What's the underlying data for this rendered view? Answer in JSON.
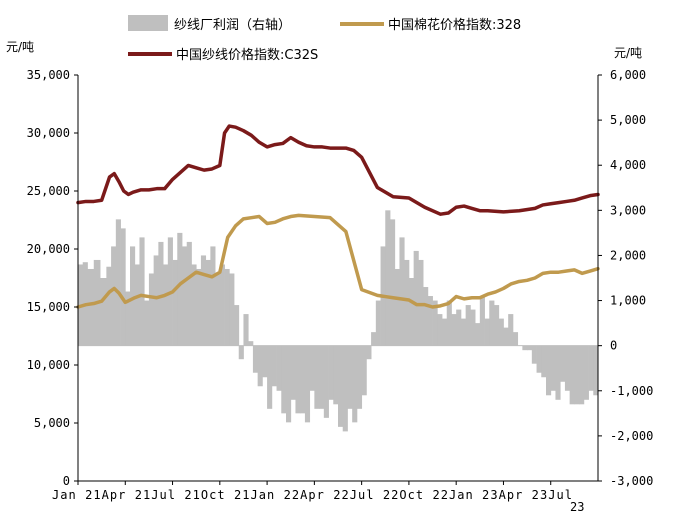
{
  "chart_data": {
    "type": "line",
    "title": "",
    "y_left_unit": "元/吨",
    "y_right_unit": "元/吨",
    "ylim_left": [
      0,
      35000
    ],
    "ylim_right": [
      -3000,
      6000
    ],
    "y_left_ticks": [
      {
        "value": 0,
        "label": "0"
      },
      {
        "value": 5000,
        "label": "5,000"
      },
      {
        "value": 10000,
        "label": "10,000"
      },
      {
        "value": 15000,
        "label": "15,000"
      },
      {
        "value": 20000,
        "label": "20,000"
      },
      {
        "value": 25000,
        "label": "25,000"
      },
      {
        "value": 30000,
        "label": "30,000"
      },
      {
        "value": 35000,
        "label": "35,000"
      }
    ],
    "y_right_ticks": [
      {
        "value": 6000,
        "label": "6,000"
      },
      {
        "value": 5000,
        "label": "5,000"
      },
      {
        "value": 4000,
        "label": "4,000"
      },
      {
        "value": 3000,
        "label": "3,000"
      },
      {
        "value": 2000,
        "label": "2,000"
      },
      {
        "value": 1000,
        "label": "1,000"
      },
      {
        "value": 0,
        "label": "0"
      },
      {
        "value": -1000,
        "label": "-1,000"
      },
      {
        "value": -2000,
        "label": "-2,000"
      },
      {
        "value": -3000,
        "label": "-3,000"
      }
    ],
    "x_tick_labels": [
      "Jan 21",
      "Apr 21",
      "Jul 21",
      "Oct 21",
      "Jan 22",
      "Apr 22",
      "Jul 22",
      "Oct 22",
      "Jan 23",
      "Apr 23",
      "Jul 23"
    ],
    "x_tick_lines": [
      {
        "seg1": "Jan",
        "seg2": " 21",
        "seg3": "Apr",
        "seg4": " 21",
        "seg5": "Jul",
        "seg6": " 21",
        "seg7": "Oct",
        "seg8": " 21",
        "seg9": "Jan",
        "seg10": " 22",
        "seg11": "Apr",
        "seg12": " 22",
        "seg13": "Jul",
        "seg14": " 22",
        "seg15": "Oct",
        "seg16": " 22",
        "seg17": "Jan",
        "seg18": " 23",
        "seg19": "Apr",
        "seg20": " 23",
        "seg21": "Jul",
        "seg22": " 23"
      }
    ],
    "x_label_row1": "Jan  21Apr  21Jul  21Oct  21Jan  22Apr  22Jul  22Oct  22Jan  23Apr  23Jul",
    "x_label_row2": "23",
    "x_range": [
      0,
      33
    ],
    "series": [
      {
        "name": "纱线厂利润（右轴）",
        "type": "area",
        "axis": "right",
        "color": "#bfbfbf",
        "x": [
          0,
          0.3,
          0.6,
          1.0,
          1.4,
          1.8,
          2.1,
          2.4,
          2.7,
          3.0,
          3.3,
          3.6,
          3.9,
          4.2,
          4.5,
          4.8,
          5.1,
          5.4,
          5.7,
          6.0,
          6.3,
          6.6,
          6.9,
          7.2,
          7.5,
          7.8,
          8.1,
          8.4,
          8.7,
          9.0,
          9.3,
          9.6,
          9.9,
          10.2,
          10.5,
          10.8,
          11.1,
          11.4,
          11.7,
          12.0,
          12.3,
          12.6,
          12.9,
          13.2,
          13.5,
          13.8,
          14.1,
          14.4,
          14.7,
          15.0,
          15.3,
          15.6,
          15.9,
          16.2,
          16.5,
          16.8,
          17.1,
          17.4,
          17.7,
          18.0,
          18.3,
          18.6,
          18.9,
          19.2,
          19.5,
          19.8,
          20.1,
          20.4,
          20.7,
          21.0,
          21.3,
          21.6,
          21.9,
          22.2,
          22.5,
          22.8,
          23.1,
          23.4,
          23.7,
          24.0,
          24.3,
          24.6,
          24.9,
          25.2,
          25.5,
          25.8,
          26.1,
          26.4,
          26.7,
          27.0,
          27.3,
          27.6,
          27.9,
          28.2,
          28.5,
          28.8,
          29.1,
          29.4,
          29.7,
          30.0,
          30.3,
          30.6,
          30.9,
          31.2,
          31.5,
          31.8,
          32.1,
          32.4,
          32.7,
          33.0
        ],
        "values": [
          1800,
          1850,
          1700,
          1900,
          1500,
          1750,
          2200,
          2800,
          2600,
          1200,
          2200,
          1800,
          2400,
          1000,
          1600,
          2000,
          2300,
          1800,
          2400,
          1900,
          2500,
          2200,
          2300,
          1800,
          1700,
          2000,
          1900,
          2200,
          1600,
          1800,
          1700,
          1600,
          900,
          -300,
          700,
          100,
          -600,
          -900,
          -700,
          -1400,
          -900,
          -1000,
          -1500,
          -1700,
          -1200,
          -1500,
          -1500,
          -1700,
          -1000,
          -1400,
          -1400,
          -1600,
          -1200,
          -1300,
          -1800,
          -1900,
          -1400,
          -1700,
          -1400,
          -1100,
          -300,
          300,
          1000,
          2200,
          3000,
          2800,
          1700,
          2400,
          1900,
          1500,
          2100,
          1900,
          1300,
          1100,
          1000,
          700,
          600,
          1000,
          700,
          800,
          600,
          900,
          800,
          500,
          1100,
          600,
          1000,
          900,
          600,
          400,
          700,
          300,
          0,
          -100,
          -100,
          -400,
          -600,
          -700,
          -1100,
          -1000,
          -1200,
          -800,
          -1000,
          -1300,
          -1300,
          -1300,
          -1200,
          -1000,
          -1100,
          -1200
        ],
        "note": "values in 元/吨 read from right axis"
      },
      {
        "name": "中国棉花价格指数:328",
        "type": "line",
        "axis": "left",
        "color": "#c09a4e",
        "x": [
          0,
          0.5,
          1.0,
          1.5,
          2.0,
          2.3,
          2.6,
          3.0,
          3.3,
          3.6,
          4.0,
          4.5,
          5.0,
          5.5,
          6.0,
          6.5,
          7.0,
          7.5,
          8.0,
          8.5,
          9.0,
          9.5,
          10.0,
          10.5,
          11.0,
          11.5,
          12.0,
          12.5,
          13.0,
          13.5,
          14.0,
          15.0,
          16.0,
          17.0,
          18.0,
          19.0,
          19.5,
          20.0,
          20.5,
          21.0,
          21.5,
          22.0,
          22.5,
          23.0,
          23.5,
          24.0,
          24.5,
          25.0,
          25.5,
          26.0,
          26.5,
          27.0,
          27.5,
          28.0,
          28.5,
          29.0,
          29.5,
          30.0,
          30.5,
          31.0,
          31.5,
          32.0,
          32.5,
          33.0
        ],
        "values": [
          15000,
          15200,
          15300,
          15500,
          16300,
          16600,
          16200,
          15400,
          15600,
          15800,
          16000,
          15900,
          15800,
          16000,
          16300,
          17000,
          17500,
          18000,
          17800,
          17600,
          18000,
          21000,
          22000,
          22600,
          22700,
          22800,
          22200,
          22300,
          22600,
          22800,
          22900,
          22800,
          22700,
          21500,
          16500,
          16000,
          15900,
          15800,
          15700,
          15600,
          15200,
          15200,
          15000,
          15100,
          15300,
          15900,
          15700,
          15800,
          15800,
          16100,
          16300,
          16600,
          17000,
          17200,
          17300,
          17500,
          17900,
          18000,
          18000,
          18100,
          18200,
          17900,
          18100,
          18300
        ]
      },
      {
        "name": "中国纱线价格指数:C32S",
        "type": "line",
        "axis": "left",
        "color": "#7b1a1a",
        "x": [
          0,
          0.5,
          1.0,
          1.5,
          2.0,
          2.3,
          2.6,
          2.9,
          3.2,
          3.5,
          4.0,
          4.5,
          5.0,
          5.5,
          6.0,
          6.5,
          7.0,
          7.5,
          8.0,
          8.5,
          9.0,
          9.3,
          9.6,
          10.0,
          10.5,
          11.0,
          11.5,
          12.0,
          12.5,
          13.0,
          13.5,
          14.0,
          14.5,
          15.0,
          15.5,
          16.0,
          16.5,
          17.0,
          17.5,
          18.0,
          18.5,
          19.0,
          19.5,
          20.0,
          21.0,
          22.0,
          23.0,
          23.5,
          24.0,
          24.5,
          25.0,
          25.5,
          26.0,
          27.0,
          28.0,
          29.0,
          29.5,
          30.0,
          30.5,
          31.0,
          31.5,
          32.0,
          32.5,
          33.0
        ],
        "values": [
          24000,
          24100,
          24100,
          24200,
          26200,
          26500,
          25800,
          25000,
          24700,
          24900,
          25100,
          25100,
          25200,
          25200,
          26000,
          26600,
          27200,
          27000,
          26800,
          26900,
          27200,
          30000,
          30600,
          30500,
          30200,
          29800,
          29200,
          28800,
          29000,
          29100,
          29600,
          29200,
          28900,
          28800,
          28800,
          28700,
          28700,
          28700,
          28500,
          27900,
          26600,
          25300,
          24900,
          24500,
          24400,
          23600,
          23000,
          23100,
          23600,
          23700,
          23500,
          23300,
          23300,
          23200,
          23300,
          23500,
          23800,
          23900,
          24000,
          24100,
          24200,
          24400,
          24600,
          24700
        ]
      }
    ],
    "legend": [
      {
        "label": "纱线厂利润（右轴）",
        "kind": "box",
        "color": "#bfbfbf"
      },
      {
        "label": "中国棉花价格指数:328",
        "kind": "line",
        "color": "#c09a4e"
      },
      {
        "label": "中国纱线价格指数:C32S",
        "kind": "line",
        "color": "#7b1a1a"
      }
    ],
    "legend_position": "top"
  }
}
